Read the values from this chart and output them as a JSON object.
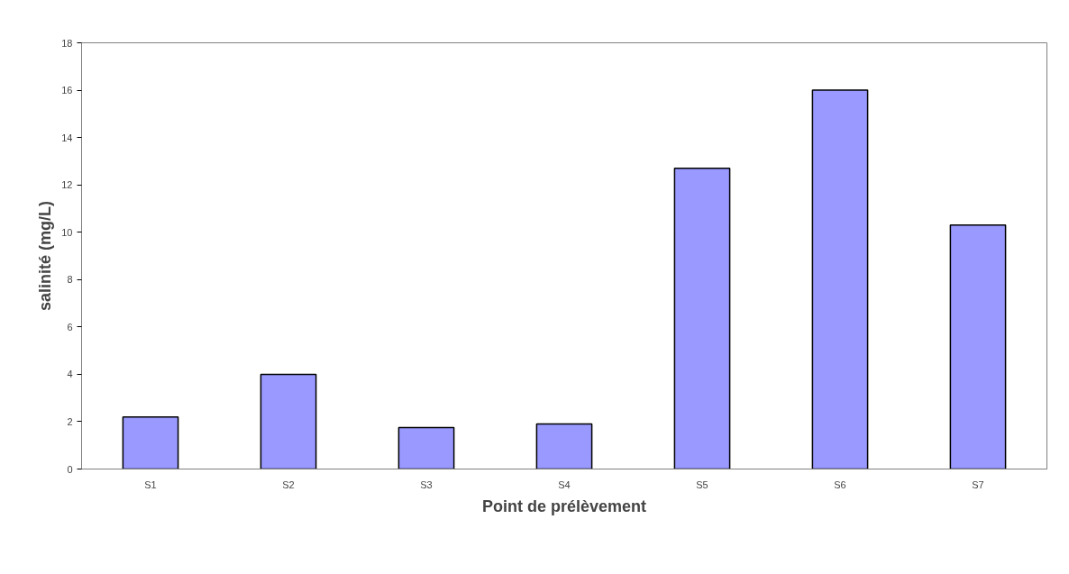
{
  "chart_data": {
    "type": "bar",
    "xlabel": "Point de prélèvement",
    "ylabel": "salinité (mg/L)",
    "categories": [
      "S1",
      "S2",
      "S3",
      "S4",
      "S5",
      "S6",
      "S7"
    ],
    "values": [
      2.2,
      4.0,
      1.75,
      1.9,
      12.7,
      16.0,
      10.3
    ],
    "color": "#9999ff",
    "ylim": [
      0,
      18
    ],
    "yticks": [
      0,
      2,
      4,
      6,
      8,
      10,
      12,
      14,
      16,
      18
    ],
    "grid": false
  }
}
